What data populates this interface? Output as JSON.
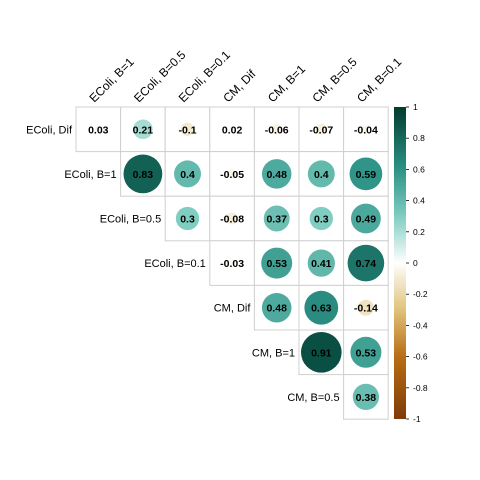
{
  "chart_data": {
    "type": "heatmap",
    "variables": [
      "EColi, Dif",
      "EColi, B=1",
      "EColi, B=0.5",
      "EColi, B=0.1",
      "CM, Dif",
      "CM, B=1",
      "CM, B=0.5",
      "CM, B=0.1"
    ],
    "row_labels": [
      "EColi, Dif",
      "EColi, B=1",
      "EColi, B=0.5",
      "EColi, B=0.1",
      "CM, Dif",
      "CM, B=1",
      "CM, B=0.5"
    ],
    "col_labels": [
      "EColi, B=1",
      "EColi, B=0.5",
      "EColi, B=0.1",
      "CM, Dif",
      "CM, B=1",
      "CM, B=0.5",
      "CM, B=0.1"
    ],
    "layout": "upper-triangle",
    "cells": [
      {
        "row": 0,
        "col": 0,
        "value": 0.03
      },
      {
        "row": 0,
        "col": 1,
        "value": 0.21
      },
      {
        "row": 0,
        "col": 2,
        "value": -0.1,
        "label": "-0.1"
      },
      {
        "row": 0,
        "col": 3,
        "value": 0.02
      },
      {
        "row": 0,
        "col": 4,
        "value": -0.06
      },
      {
        "row": 0,
        "col": 5,
        "value": -0.07
      },
      {
        "row": 0,
        "col": 6,
        "value": -0.04
      },
      {
        "row": 1,
        "col": 1,
        "value": 0.83
      },
      {
        "row": 1,
        "col": 2,
        "value": 0.4
      },
      {
        "row": 1,
        "col": 3,
        "value": -0.05
      },
      {
        "row": 1,
        "col": 4,
        "value": 0.48
      },
      {
        "row": 1,
        "col": 5,
        "value": 0.4
      },
      {
        "row": 1,
        "col": 6,
        "value": 0.59
      },
      {
        "row": 2,
        "col": 2,
        "value": 0.3
      },
      {
        "row": 2,
        "col": 3,
        "value": -0.08
      },
      {
        "row": 2,
        "col": 4,
        "value": 0.37
      },
      {
        "row": 2,
        "col": 5,
        "value": 0.3
      },
      {
        "row": 2,
        "col": 6,
        "value": 0.49
      },
      {
        "row": 3,
        "col": 3,
        "value": -0.03
      },
      {
        "row": 3,
        "col": 4,
        "value": 0.53
      },
      {
        "row": 3,
        "col": 5,
        "value": 0.41
      },
      {
        "row": 3,
        "col": 6,
        "value": 0.74
      },
      {
        "row": 4,
        "col": 4,
        "value": 0.48
      },
      {
        "row": 4,
        "col": 5,
        "value": 0.63
      },
      {
        "row": 4,
        "col": 6,
        "value": -0.14
      },
      {
        "row": 5,
        "col": 5,
        "value": 0.91
      },
      {
        "row": 5,
        "col": 6,
        "value": 0.53
      },
      {
        "row": 6,
        "col": 6,
        "value": 0.38
      }
    ],
    "encoding": "circle area and color proportional to correlation",
    "colorbar": {
      "range": [
        -1,
        1
      ],
      "ticks": [
        "1",
        "0.8",
        "0.6",
        "0.4",
        "0.2",
        "0",
        "-0.2",
        "-0.4",
        "-0.6",
        "-0.8",
        "-1"
      ],
      "colors": {
        "low": "#7f3b08",
        "lowmid": "#e0c27a",
        "mid": "#ffffff",
        "highmid": "#80cdc1",
        "high": "#003c30"
      }
    },
    "grid": true,
    "legend": "right"
  }
}
